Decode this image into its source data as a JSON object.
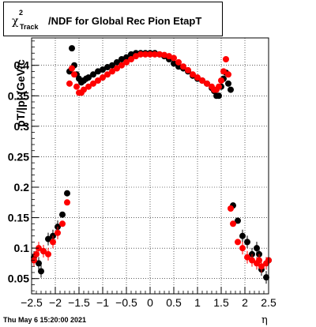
{
  "title": {
    "prefix_symbol": "χ",
    "superscript": "2",
    "subscript": "Track",
    "text": "/NDF for Global Rec Pion EtapT"
  },
  "ylabel_visible": "pT/|p| (GeV/c",
  "xlabel": "η",
  "timestamp": "Thu May  6 15:20:00 2021",
  "colors": {
    "series_black": "#000000",
    "series_red": "#ff0000",
    "grid": "#000000",
    "frame": "#000000"
  },
  "chart_data": {
    "type": "scatter",
    "xlim": [
      -2.5,
      2.5
    ],
    "ylim": [
      0.025,
      0.445
    ],
    "x_ticks": [
      "−2.5",
      "−2",
      "−1.5",
      "−1",
      "−0.5",
      "0",
      "0.5",
      "1",
      "1.5",
      "2",
      "2.5"
    ],
    "x_tick_values": [
      -2.5,
      -2,
      -1.5,
      -1,
      -0.5,
      0,
      0.5,
      1,
      1.5,
      2,
      2.5
    ],
    "y_ticks": [
      "0.05",
      "0.1",
      "0.15",
      "0.2",
      "0.25",
      "0.3",
      "0.35",
      "0.4"
    ],
    "y_tick_values": [
      0.05,
      0.1,
      0.15,
      0.2,
      0.25,
      0.3,
      0.35,
      0.4
    ],
    "grid": true,
    "series": [
      {
        "color": "black",
        "x": [
          -2.45,
          -2.35,
          -2.3,
          -2.25,
          -2.15,
          -2.05,
          -1.95,
          -1.85,
          -1.75,
          -1.7,
          -1.65,
          -1.6,
          -1.55,
          -1.5,
          -1.45,
          -1.4,
          -1.35,
          -1.3,
          -1.2,
          -1.1,
          -1.0,
          -0.9,
          -0.8,
          -0.7,
          -0.6,
          -0.5,
          -0.4,
          -0.3,
          -0.2,
          -0.1,
          0.0,
          0.1,
          0.2,
          0.3,
          0.4,
          0.5,
          0.6,
          0.7,
          0.8,
          0.9,
          1.0,
          1.1,
          1.2,
          1.3,
          1.35,
          1.4,
          1.45,
          1.5,
          1.55,
          1.6,
          1.65,
          1.7,
          1.75,
          1.85,
          1.95,
          2.05,
          2.15,
          2.25,
          2.3,
          2.35,
          2.45,
          2.5
        ],
        "y": [
          0.085,
          0.075,
          0.062,
          0.095,
          0.115,
          0.12,
          0.135,
          0.155,
          0.19,
          0.39,
          0.428,
          0.4,
          0.385,
          0.378,
          0.372,
          0.375,
          0.378,
          0.38,
          0.385,
          0.39,
          0.393,
          0.397,
          0.4,
          0.405,
          0.41,
          0.413,
          0.418,
          0.42,
          0.42,
          0.42,
          0.42,
          0.42,
          0.418,
          0.415,
          0.41,
          0.403,
          0.398,
          0.395,
          0.39,
          0.383,
          0.378,
          0.375,
          0.37,
          0.363,
          0.358,
          0.35,
          0.35,
          0.365,
          0.378,
          0.388,
          0.37,
          0.36,
          0.17,
          0.145,
          0.12,
          0.11,
          0.09,
          0.1,
          0.09,
          0.065,
          0.052,
          0.08
        ]
      },
      {
        "color": "red",
        "x": [
          -2.45,
          -2.4,
          -2.35,
          -2.25,
          -2.15,
          -2.05,
          -1.95,
          -1.85,
          -1.75,
          -1.7,
          -1.65,
          -1.6,
          -1.55,
          -1.5,
          -1.45,
          -1.4,
          -1.3,
          -1.2,
          -1.1,
          -1.0,
          -0.9,
          -0.8,
          -0.7,
          -0.6,
          -0.5,
          -0.4,
          -0.3,
          -0.2,
          -0.1,
          0.0,
          0.1,
          0.2,
          0.3,
          0.4,
          0.5,
          0.6,
          0.7,
          0.8,
          0.9,
          1.0,
          1.1,
          1.2,
          1.3,
          1.35,
          1.4,
          1.45,
          1.5,
          1.55,
          1.6,
          1.65,
          1.7,
          1.75,
          1.85,
          1.95,
          2.05,
          2.15,
          2.25,
          2.3,
          2.35,
          2.45,
          2.5
        ],
        "y": [
          0.08,
          0.09,
          0.1,
          0.095,
          0.09,
          0.11,
          0.125,
          0.14,
          0.175,
          0.37,
          0.395,
          0.385,
          0.365,
          0.355,
          0.355,
          0.36,
          0.365,
          0.37,
          0.375,
          0.38,
          0.385,
          0.39,
          0.395,
          0.4,
          0.405,
          0.41,
          0.415,
          0.418,
          0.418,
          0.418,
          0.418,
          0.418,
          0.417,
          0.415,
          0.412,
          0.405,
          0.398,
          0.392,
          0.385,
          0.38,
          0.375,
          0.37,
          0.365,
          0.36,
          0.36,
          0.365,
          0.375,
          0.39,
          0.41,
          0.385,
          0.165,
          0.14,
          0.11,
          0.1,
          0.085,
          0.08,
          0.075,
          0.08,
          0.07,
          0.075,
          0.08
        ]
      }
    ]
  }
}
